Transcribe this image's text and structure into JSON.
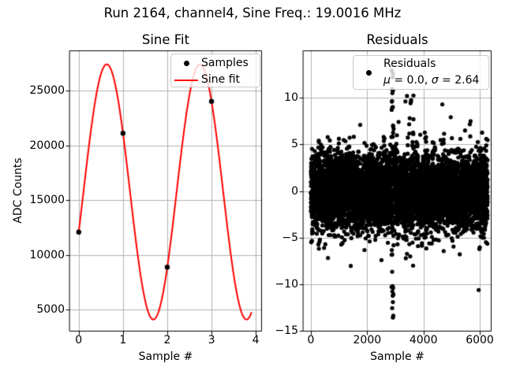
{
  "title": "Run 2164, channel4, Sine Freq.: 19.0016 MHz",
  "colors": {
    "background": "#ffffff",
    "frame": "#000000",
    "grid": "#b0b0b0",
    "text": "#000000",
    "sine_fit": "#ff0000",
    "samples": "#000000",
    "legend_border": "#cbcbcb"
  },
  "chart_data": [
    {
      "type": "line",
      "title": "Sine Fit",
      "xlabel": "Sample #",
      "ylabel": "ADC Counts",
      "xlim": [
        -0.21,
        4.14
      ],
      "ylim": [
        3000,
        28670
      ],
      "xticks": [
        0,
        1,
        2,
        3,
        4
      ],
      "yticks": [
        5000,
        10000,
        15000,
        20000,
        25000
      ],
      "grid": true,
      "legend": {
        "location": "upper right",
        "entries": [
          {
            "label": "Samples",
            "marker": "dot",
            "color": "#000000"
          },
          {
            "label": "Sine fit",
            "marker": "line",
            "color": "#ff0000"
          }
        ]
      },
      "samples": {
        "x": [
          0,
          1,
          2,
          3
        ],
        "y": [
          12080,
          21100,
          8880,
          24020
        ]
      },
      "sine_fit": {
        "offset": 15750,
        "amplitude": 11650,
        "period": 2.105,
        "phase_rad": -0.319,
        "x_start": 0,
        "x_end": 3.9,
        "color": "#ff0000"
      }
    },
    {
      "type": "scatter",
      "title": "Residuals",
      "xlabel": "Sample #",
      "ylabel": "",
      "xlim": [
        -280,
        6420
      ],
      "ylim": [
        -15.1,
        15.1
      ],
      "xticks": [
        0,
        2000,
        4000,
        6000
      ],
      "yticks": [
        -15,
        -10,
        -5,
        0,
        5,
        10
      ],
      "grid": true,
      "legend": {
        "location": "upper right",
        "entries": [
          {
            "label": "Residuals",
            "stats_label": "μ = 0.0, σ = 2.64",
            "marker": "dot",
            "color": "#000000"
          }
        ]
      },
      "stats": {
        "mu": 0.0,
        "sigma": 2.64
      },
      "scatter_spec": {
        "n_points": 6300,
        "x_range": [
          0,
          6280
        ],
        "core_sigma": 2.05,
        "tail_sigma": 3.1,
        "tail_fraction": 0.03,
        "spike": {
          "x_center": 2905,
          "x_halfwidth": 38,
          "y_min": -14,
          "y_max": 13,
          "n_points": 55,
          "band_gap_fraction": 0.78
        },
        "high_outliers": {
          "x_range": [
            3350,
            3650
          ],
          "n_points": 15,
          "y_min": 6,
          "y_max": 10.4
        },
        "seed": 7
      }
    }
  ]
}
